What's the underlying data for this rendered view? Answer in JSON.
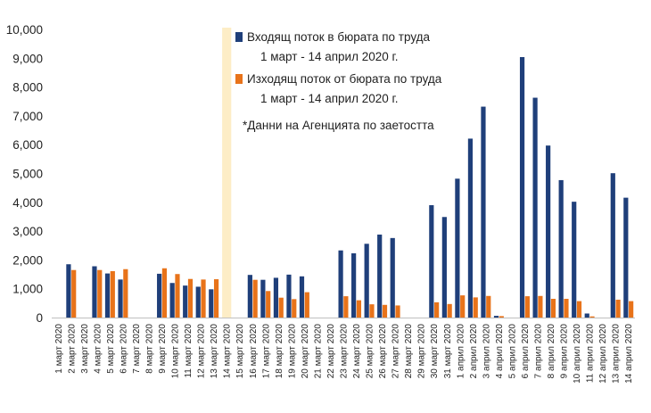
{
  "chart_data": {
    "type": "bar",
    "categories": [
      "1 март 2020",
      "2 март 2020",
      "3 март 2020",
      "4 март 2020",
      "5 март 2020",
      "6 март 2020",
      "7 март 2020",
      "8 март 2020",
      "9 март 2020",
      "10 март 2020",
      "11 март 2020",
      "12 март 2020",
      "13 март 2020",
      "14 март 2020",
      "15 март 2020",
      "16 март 2020",
      "17 март 2020",
      "18 март 2020",
      "19 март 2020",
      "20 март 2020",
      "21 март 2020",
      "22 март 2020",
      "23 март 2020",
      "24 март 2020",
      "25 март 2020",
      "26 март 2020",
      "27 март 2020",
      "28 март 2020",
      "29 март 2020",
      "30 март 2020",
      "31 март 2020",
      "1 април 2020",
      "2 април 2020",
      "3 април 2020",
      "4 април 2020",
      "5 април 2020",
      "6 април 2020",
      "7 април 2020",
      "8 април 2020",
      "9 април 2020",
      "10 април 2020",
      "11 април 2020",
      "12 април 2020",
      "13 април 2020",
      "14 април 2020"
    ],
    "series": [
      {
        "name": "Входящ поток в бюрата по труда\n1 март - 14 април 2020 г.",
        "color": "#1f3f7a",
        "values": [
          0,
          1850,
          0,
          1780,
          1530,
          1320,
          0,
          0,
          1520,
          1200,
          1110,
          1070,
          980,
          0,
          0,
          1480,
          1310,
          1380,
          1490,
          1430,
          0,
          0,
          2330,
          2230,
          2560,
          2880,
          2760,
          0,
          0,
          3900,
          3490,
          4820,
          6210,
          7320,
          60,
          0,
          9040,
          7630,
          5970,
          4770,
          4020,
          140,
          0,
          5010,
          4160
        ]
      },
      {
        "name": "Изходящ поток от бюрата по труда\n1 март - 14 април 2020 г.",
        "color": "#e8731a",
        "values": [
          0,
          1650,
          0,
          1650,
          1610,
          1680,
          0,
          0,
          1710,
          1510,
          1340,
          1320,
          1330,
          0,
          0,
          1310,
          920,
          690,
          640,
          880,
          0,
          0,
          740,
          600,
          460,
          440,
          420,
          0,
          0,
          530,
          470,
          770,
          700,
          750,
          50,
          0,
          740,
          750,
          650,
          650,
          570,
          40,
          0,
          620,
          570
        ]
      }
    ],
    "ylim": [
      0,
      10000
    ],
    "yticks": [
      "0",
      "1,000",
      "2,000",
      "3,000",
      "4,000",
      "5,000",
      "6,000",
      "7,000",
      "8,000",
      "9,000",
      "10,000"
    ],
    "highlight_category": "14 март 2020",
    "highlight_color": "#fdedc6",
    "note": "*Данни на Агенцията по заетостта",
    "legend_position": "top-right",
    "grid": false
  }
}
